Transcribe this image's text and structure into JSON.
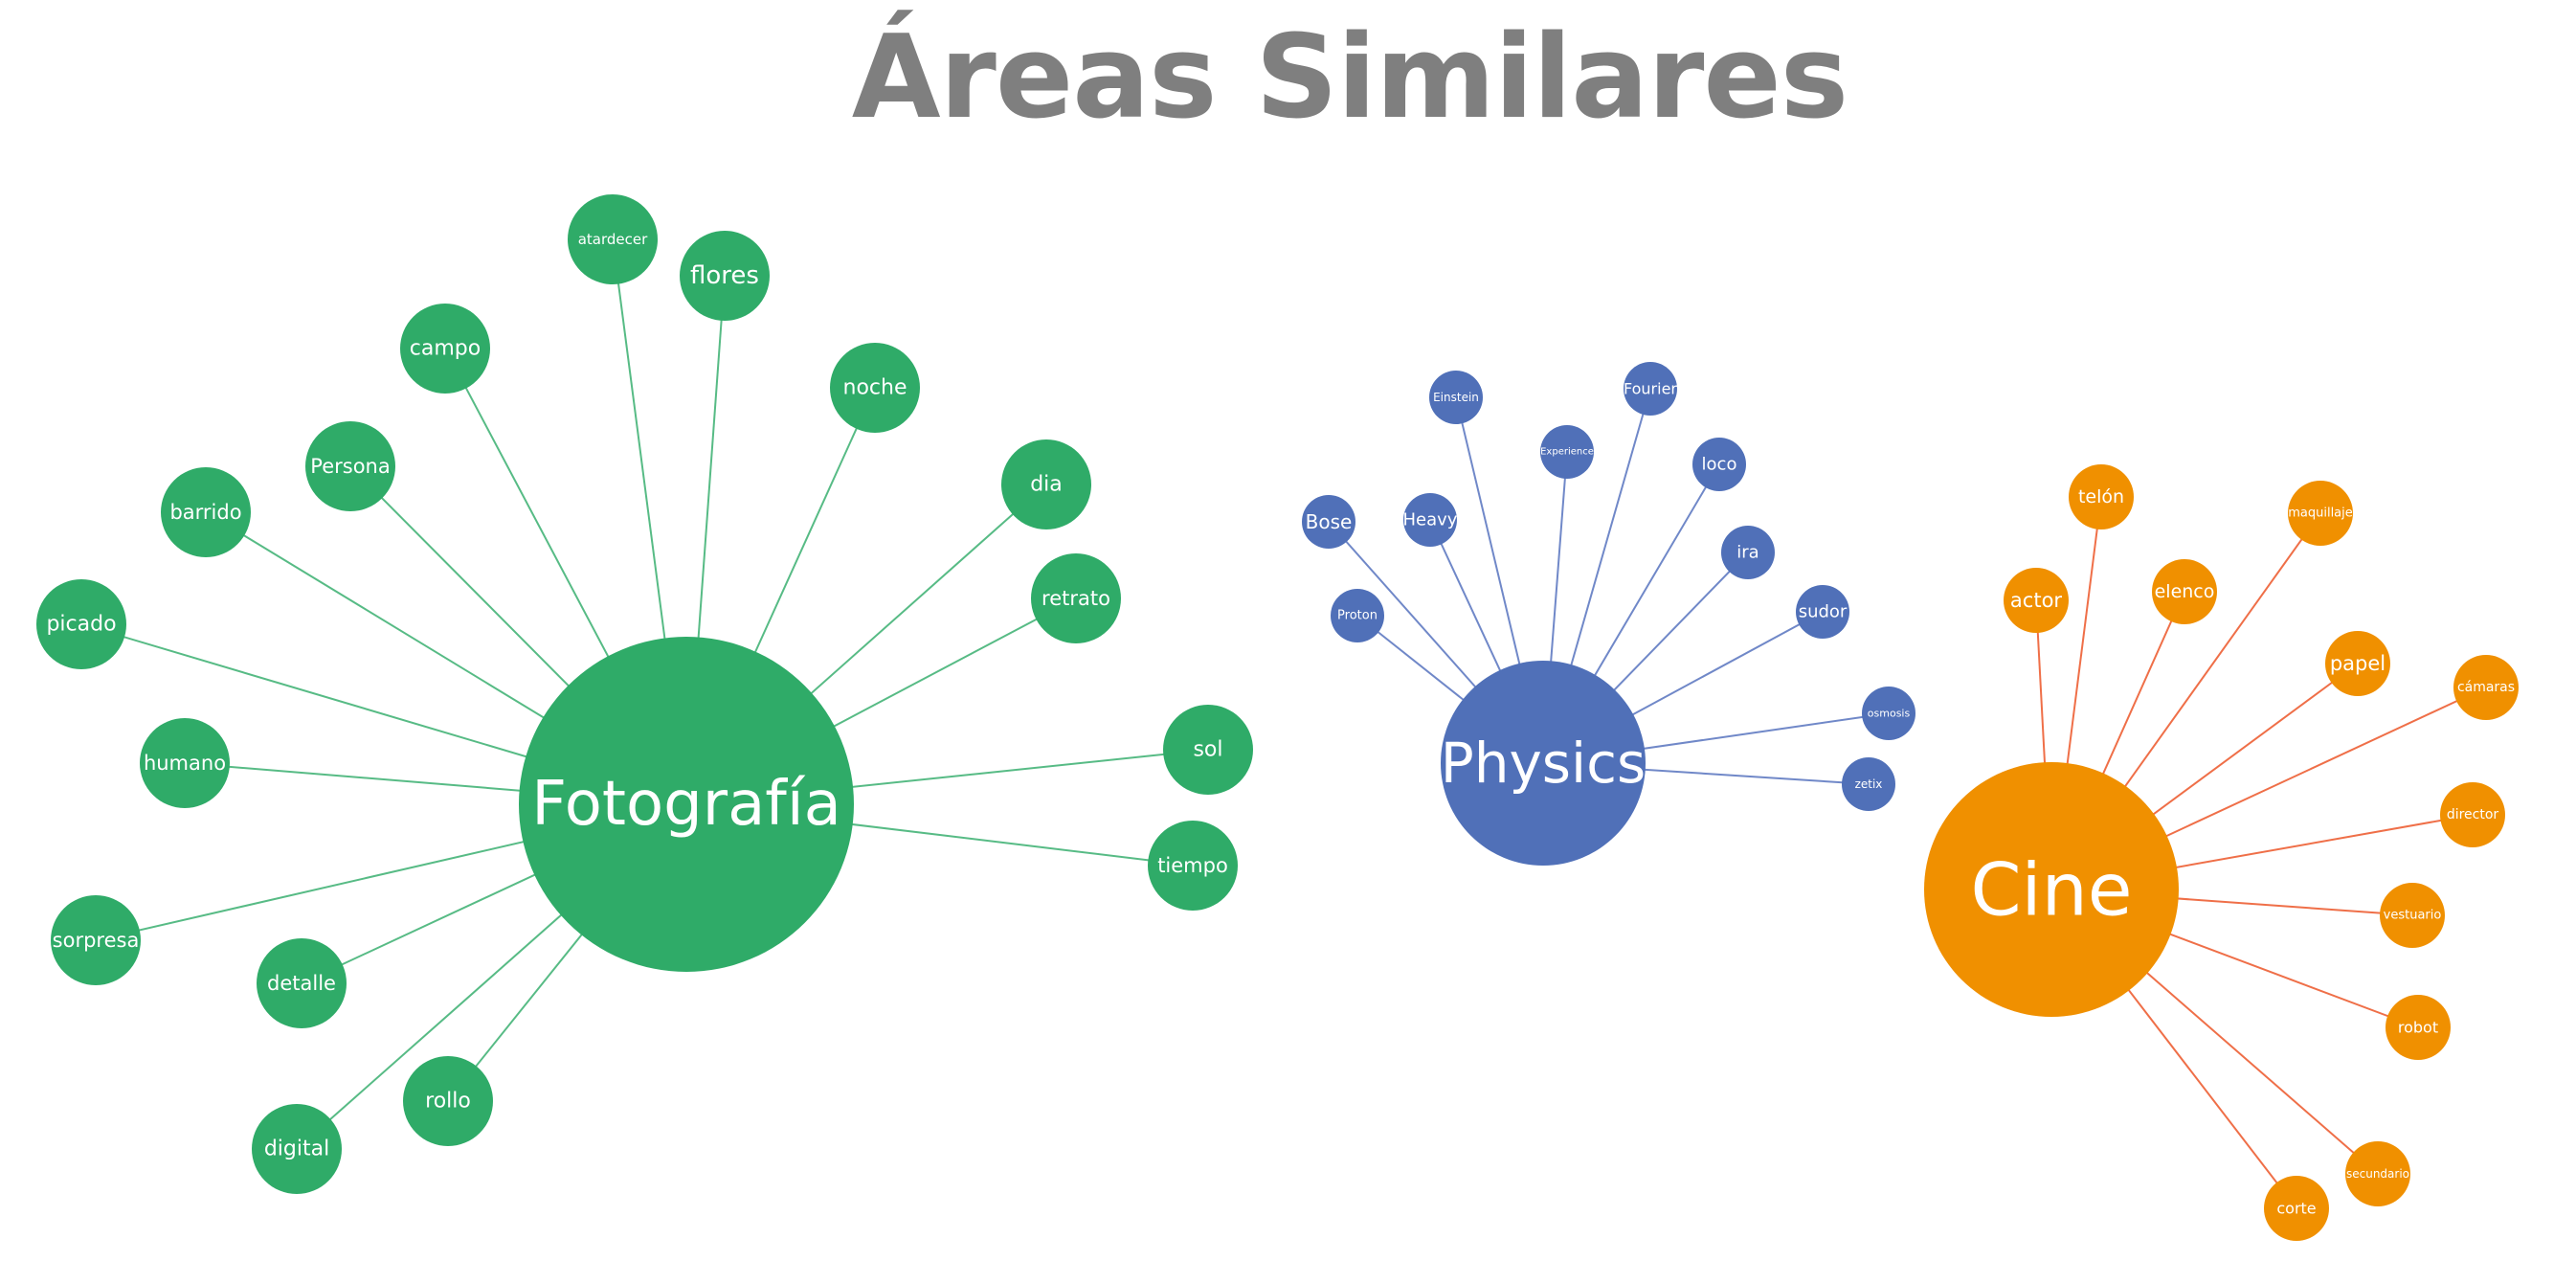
{
  "title": "Áreas Similares",
  "colors": {
    "green": "#2fab68",
    "green_line": "#57bb85",
    "blue": "#5070b8",
    "blue_line": "#7088c8",
    "orange": "#f09000",
    "orange_line": "#ef6f48",
    "title_gray": "#7f7f7f"
  },
  "clusters": [
    {
      "id": "fotografia",
      "label": "Fotografía",
      "color_key": "green",
      "line_key": "green_line",
      "children": [
        "atardecer",
        "flores",
        "campo",
        "noche",
        "Persona",
        "dia",
        "barrido",
        "retrato",
        "picado",
        "humano",
        "sol",
        "tiempo",
        "sorpresa",
        "detalle",
        "rollo",
        "digital"
      ]
    },
    {
      "id": "physics",
      "label": "Physics",
      "color_key": "blue",
      "line_key": "blue_line",
      "children": [
        "Einstein",
        "Fourier",
        "Experience",
        "loco",
        "Bose",
        "Heavy",
        "ira",
        "Proton",
        "sudor",
        "osmosis",
        "zetix"
      ]
    },
    {
      "id": "cine",
      "label": "Cine",
      "color_key": "orange",
      "line_key": "orange_line",
      "children": [
        "telón",
        "maquillaje",
        "actor",
        "elenco",
        "papel",
        "cámaras",
        "director",
        "vestuario",
        "robot",
        "secundario",
        "corte"
      ]
    }
  ]
}
